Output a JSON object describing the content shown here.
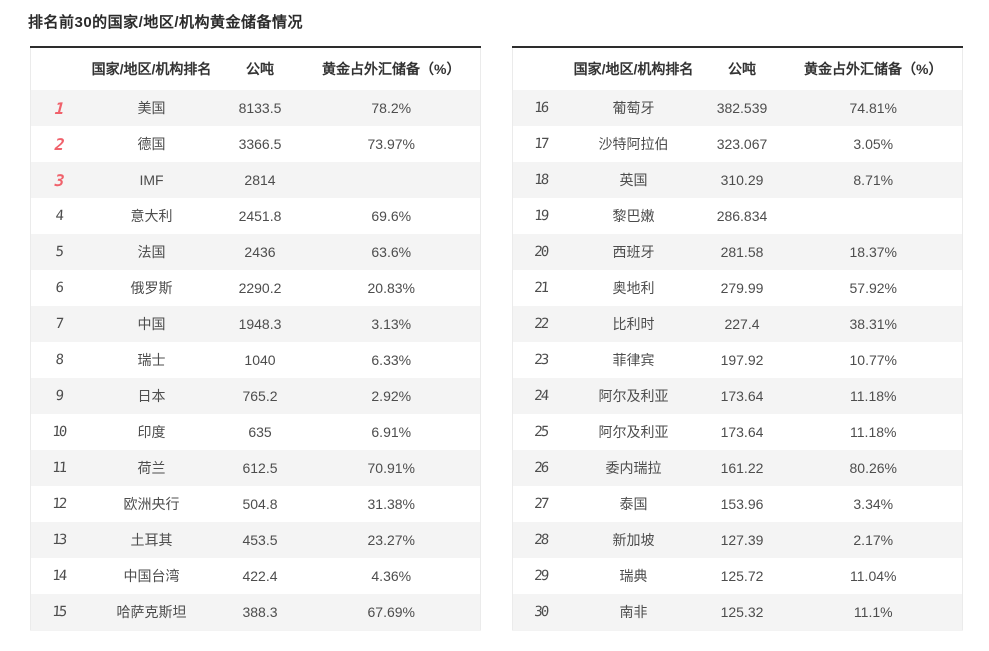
{
  "title": "排名前30的国家/地区/机构黄金储备情况",
  "table_header": {
    "rank": "",
    "name": "国家/地区/机构排名",
    "tonnes": "公吨",
    "pct": "黄金占外汇储备（%）"
  },
  "colors": {
    "accent_red": "#f0616b",
    "rank_gray": "#8f8f8f",
    "stripe": "#f4f4f4",
    "border_dark": "#2d2d2d",
    "border_light": "#ebebeb"
  },
  "tables": [
    {
      "rows": [
        {
          "rank": "1",
          "name": "美国",
          "tonnes": "8133.5",
          "pct": "78.2%"
        },
        {
          "rank": "2",
          "name": "德国",
          "tonnes": "3366.5",
          "pct": "73.97%"
        },
        {
          "rank": "3",
          "name": "IMF",
          "tonnes": "2814",
          "pct": ""
        },
        {
          "rank": "4",
          "name": "意大利",
          "tonnes": "2451.8",
          "pct": "69.6%"
        },
        {
          "rank": "5",
          "name": "法国",
          "tonnes": "2436",
          "pct": "63.6%"
        },
        {
          "rank": "6",
          "name": "俄罗斯",
          "tonnes": "2290.2",
          "pct": "20.83%"
        },
        {
          "rank": "7",
          "name": "中国",
          "tonnes": "1948.3",
          "pct": "3.13%"
        },
        {
          "rank": "8",
          "name": "瑞士",
          "tonnes": "1040",
          "pct": "6.33%"
        },
        {
          "rank": "9",
          "name": "日本",
          "tonnes": "765.2",
          "pct": "2.92%"
        },
        {
          "rank": "10",
          "name": "印度",
          "tonnes": "635",
          "pct": "6.91%"
        },
        {
          "rank": "11",
          "name": "荷兰",
          "tonnes": "612.5",
          "pct": "70.91%"
        },
        {
          "rank": "12",
          "name": "欧洲央行",
          "tonnes": "504.8",
          "pct": "31.38%"
        },
        {
          "rank": "13",
          "name": "土耳其",
          "tonnes": "453.5",
          "pct": "23.27%"
        },
        {
          "rank": "14",
          "name": "中国台湾",
          "tonnes": "422.4",
          "pct": "4.36%"
        },
        {
          "rank": "15",
          "name": "哈萨克斯坦",
          "tonnes": "388.3",
          "pct": "67.69%"
        }
      ]
    },
    {
      "rows": [
        {
          "rank": "16",
          "name": "葡萄牙",
          "tonnes": "382.539",
          "pct": "74.81%"
        },
        {
          "rank": "17",
          "name": "沙特阿拉伯",
          "tonnes": "323.067",
          "pct": "3.05%"
        },
        {
          "rank": "18",
          "name": "英国",
          "tonnes": "310.29",
          "pct": "8.71%"
        },
        {
          "rank": "19",
          "name": "黎巴嫩",
          "tonnes": "286.834",
          "pct": ""
        },
        {
          "rank": "20",
          "name": "西班牙",
          "tonnes": "281.58",
          "pct": "18.37%"
        },
        {
          "rank": "21",
          "name": "奥地利",
          "tonnes": "279.99",
          "pct": "57.92%"
        },
        {
          "rank": "22",
          "name": "比利时",
          "tonnes": "227.4",
          "pct": "38.31%"
        },
        {
          "rank": "23",
          "name": "菲律宾",
          "tonnes": "197.92",
          "pct": "10.77%"
        },
        {
          "rank": "24",
          "name": "阿尔及利亚",
          "tonnes": "173.64",
          "pct": "11.18%"
        },
        {
          "rank": "25",
          "name": "阿尔及利亚",
          "tonnes": "173.64",
          "pct": "11.18%"
        },
        {
          "rank": "26",
          "name": "委内瑞拉",
          "tonnes": "161.22",
          "pct": "80.26%"
        },
        {
          "rank": "27",
          "name": "泰国",
          "tonnes": "153.96",
          "pct": "3.34%"
        },
        {
          "rank": "28",
          "name": "新加坡",
          "tonnes": "127.39",
          "pct": "2.17%"
        },
        {
          "rank": "29",
          "name": "瑞典",
          "tonnes": "125.72",
          "pct": "11.04%"
        },
        {
          "rank": "30",
          "name": "南非",
          "tonnes": "125.32",
          "pct": "11.1%"
        }
      ]
    }
  ],
  "chart_data": {
    "type": "table",
    "title": "排名前30的国家/地区/机构黄金储备情况",
    "columns": [
      "排名",
      "国家/地区/机构",
      "公吨",
      "黄金占外汇储备（%）"
    ],
    "rows": [
      [
        1,
        "美国",
        8133.5,
        "78.2%"
      ],
      [
        2,
        "德国",
        3366.5,
        "73.97%"
      ],
      [
        3,
        "IMF",
        2814,
        ""
      ],
      [
        4,
        "意大利",
        2451.8,
        "69.6%"
      ],
      [
        5,
        "法国",
        2436,
        "63.6%"
      ],
      [
        6,
        "俄罗斯",
        2290.2,
        "20.83%"
      ],
      [
        7,
        "中国",
        1948.3,
        "3.13%"
      ],
      [
        8,
        "瑞士",
        1040,
        "6.33%"
      ],
      [
        9,
        "日本",
        765.2,
        "2.92%"
      ],
      [
        10,
        "印度",
        635,
        "6.91%"
      ],
      [
        11,
        "荷兰",
        612.5,
        "70.91%"
      ],
      [
        12,
        "欧洲央行",
        504.8,
        "31.38%"
      ],
      [
        13,
        "土耳其",
        453.5,
        "23.27%"
      ],
      [
        14,
        "中国台湾",
        422.4,
        "4.36%"
      ],
      [
        15,
        "哈萨克斯坦",
        388.3,
        "67.69%"
      ],
      [
        16,
        "葡萄牙",
        382.539,
        "74.81%"
      ],
      [
        17,
        "沙特阿拉伯",
        323.067,
        "3.05%"
      ],
      [
        18,
        "英国",
        310.29,
        "8.71%"
      ],
      [
        19,
        "黎巴嫩",
        286.834,
        ""
      ],
      [
        20,
        "西班牙",
        281.58,
        "18.37%"
      ],
      [
        21,
        "奥地利",
        279.99,
        "57.92%"
      ],
      [
        22,
        "比利时",
        227.4,
        "38.31%"
      ],
      [
        23,
        "菲律宾",
        197.92,
        "10.77%"
      ],
      [
        24,
        "阿尔及利亚",
        173.64,
        "11.18%"
      ],
      [
        25,
        "阿尔及利亚",
        173.64,
        "11.18%"
      ],
      [
        26,
        "委内瑞拉",
        161.22,
        "80.26%"
      ],
      [
        27,
        "泰国",
        153.96,
        "3.34%"
      ],
      [
        28,
        "新加坡",
        127.39,
        "2.17%"
      ],
      [
        29,
        "瑞典",
        125.72,
        "11.04%"
      ],
      [
        30,
        "南非",
        125.32,
        "11.1%"
      ]
    ]
  }
}
